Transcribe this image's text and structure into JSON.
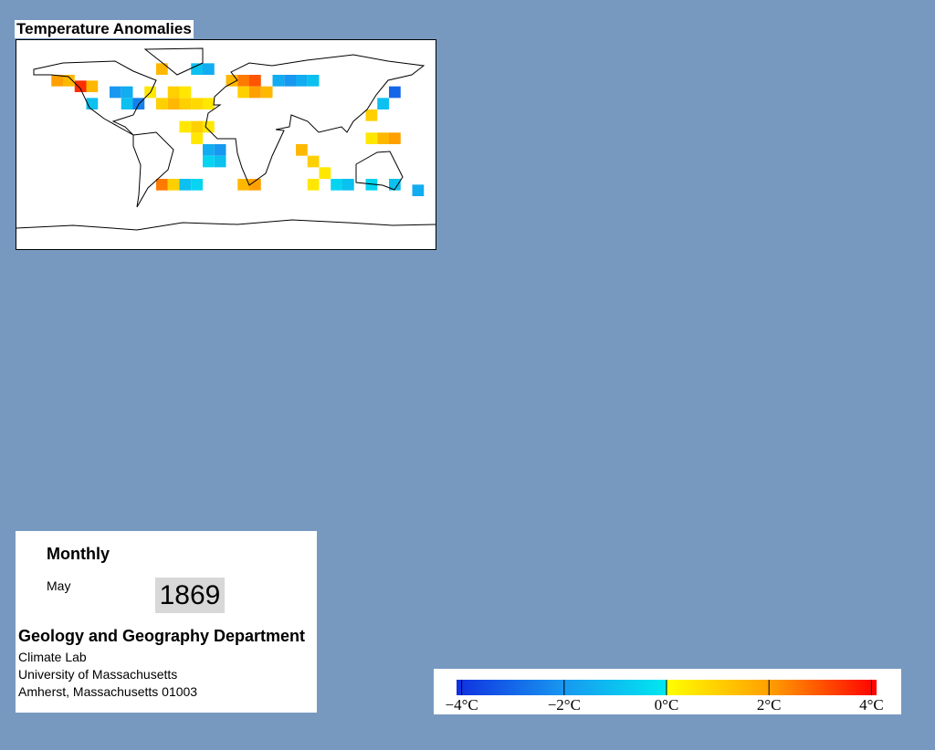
{
  "map": {
    "title": "Temperature Anomalies",
    "cells": [
      {
        "lon": -125,
        "lat": 50,
        "anomaly": 3.5
      },
      {
        "lon": -115,
        "lat": 50,
        "anomaly": 1.5
      },
      {
        "lon": -145,
        "lat": 55,
        "anomaly": 2
      },
      {
        "lon": -135,
        "lat": 55,
        "anomaly": 1.5
      },
      {
        "lon": -115,
        "lat": 35,
        "anomaly": -1
      },
      {
        "lon": -95,
        "lat": 45,
        "anomaly": -2
      },
      {
        "lon": -85,
        "lat": 45,
        "anomaly": -1.5
      },
      {
        "lon": -75,
        "lat": 35,
        "anomaly": -2.5
      },
      {
        "lon": -85,
        "lat": 35,
        "anomaly": -1
      },
      {
        "lon": -65,
        "lat": 45,
        "anomaly": 0.5
      },
      {
        "lon": -55,
        "lat": 35,
        "anomaly": 1
      },
      {
        "lon": -45,
        "lat": 35,
        "anomaly": 1.5
      },
      {
        "lon": -35,
        "lat": 35,
        "anomaly": 1
      },
      {
        "lon": -25,
        "lat": 35,
        "anomaly": 0.8
      },
      {
        "lon": -15,
        "lat": 35,
        "anomaly": 0.5
      },
      {
        "lon": -45,
        "lat": 45,
        "anomaly": 1
      },
      {
        "lon": -35,
        "lat": 45,
        "anomaly": 0.5
      },
      {
        "lon": -55,
        "lat": 65,
        "anomaly": 1.5
      },
      {
        "lon": -25,
        "lat": 65,
        "anomaly": -1
      },
      {
        "lon": -15,
        "lat": 65,
        "anomaly": -1.5
      },
      {
        "lon": 5,
        "lat": 55,
        "anomaly": 1.5
      },
      {
        "lon": 15,
        "lat": 55,
        "anomaly": 2.5
      },
      {
        "lon": 25,
        "lat": 55,
        "anomaly": 3
      },
      {
        "lon": 25,
        "lat": 45,
        "anomaly": 2
      },
      {
        "lon": 35,
        "lat": 45,
        "anomaly": 1.5
      },
      {
        "lon": 15,
        "lat": 45,
        "anomaly": 1
      },
      {
        "lon": 45,
        "lat": 55,
        "anomaly": -1.5
      },
      {
        "lon": 55,
        "lat": 55,
        "anomaly": -2
      },
      {
        "lon": 65,
        "lat": 55,
        "anomaly": -1.5
      },
      {
        "lon": 75,
        "lat": 55,
        "anomaly": -1
      },
      {
        "lon": -35,
        "lat": 15,
        "anomaly": 0.5
      },
      {
        "lon": -25,
        "lat": 15,
        "anomaly": 1
      },
      {
        "lon": -15,
        "lat": 15,
        "anomaly": 0.5
      },
      {
        "lon": -25,
        "lat": 5,
        "anomaly": 0.5
      },
      {
        "lon": -15,
        "lat": -5,
        "anomaly": -1.5
      },
      {
        "lon": -5,
        "lat": -5,
        "anomaly": -2
      },
      {
        "lon": -5,
        "lat": -15,
        "anomaly": -1
      },
      {
        "lon": -15,
        "lat": -15,
        "anomaly": -0.5
      },
      {
        "lon": -55,
        "lat": -35,
        "anomaly": 2.5
      },
      {
        "lon": -45,
        "lat": -35,
        "anomaly": 1
      },
      {
        "lon": -35,
        "lat": -35,
        "anomaly": -1
      },
      {
        "lon": -25,
        "lat": -35,
        "anomaly": -0.5
      },
      {
        "lon": 15,
        "lat": -35,
        "anomaly": 1.5
      },
      {
        "lon": 25,
        "lat": -35,
        "anomaly": 2
      },
      {
        "lon": 65,
        "lat": -5,
        "anomaly": 1.5
      },
      {
        "lon": 75,
        "lat": -15,
        "anomaly": 1
      },
      {
        "lon": 85,
        "lat": -25,
        "anomaly": 0.5
      },
      {
        "lon": 95,
        "lat": -35,
        "anomaly": -0.5
      },
      {
        "lon": 75,
        "lat": -35,
        "anomaly": 0.5
      },
      {
        "lon": 145,
        "lat": 45,
        "anomaly": -3
      },
      {
        "lon": 135,
        "lat": 35,
        "anomaly": -1
      },
      {
        "lon": 125,
        "lat": 25,
        "anomaly": 1
      },
      {
        "lon": 135,
        "lat": 5,
        "anomaly": 1.5
      },
      {
        "lon": 145,
        "lat": 5,
        "anomaly": 2
      },
      {
        "lon": 125,
        "lat": 5,
        "anomaly": 0.5
      },
      {
        "lon": 105,
        "lat": -35,
        "anomaly": -1
      },
      {
        "lon": 125,
        "lat": -35,
        "anomaly": -0.5
      },
      {
        "lon": 145,
        "lat": -35,
        "anomaly": -1
      },
      {
        "lon": 165,
        "lat": -40,
        "anomaly": -1.5
      }
    ]
  },
  "info": {
    "period": "Monthly",
    "month": "May",
    "year": "1869",
    "department": "Geology and Geography Department",
    "lab": "Climate Lab",
    "university": "University of Massachusetts",
    "address": "Amherst, Massachusetts 01003"
  },
  "colorbar": {
    "range": [
      -4.1,
      4.1
    ],
    "ticks": [
      {
        "value": -4,
        "label": "−4°C"
      },
      {
        "value": -2,
        "label": "−2°C"
      },
      {
        "value": 0,
        "label": "0°C"
      },
      {
        "value": 2,
        "label": "2°C"
      },
      {
        "value": 4,
        "label": "4°C"
      }
    ],
    "colormap": [
      {
        "value": -4.1,
        "color": "#1030e0"
      },
      {
        "value": -2,
        "color": "#1898f0"
      },
      {
        "value": 0,
        "color": "#00e8f0"
      },
      {
        "value": 0,
        "color": "#ffff00"
      },
      {
        "value": 2,
        "color": "#ffa000"
      },
      {
        "value": 4.1,
        "color": "#ff0000"
      }
    ]
  }
}
